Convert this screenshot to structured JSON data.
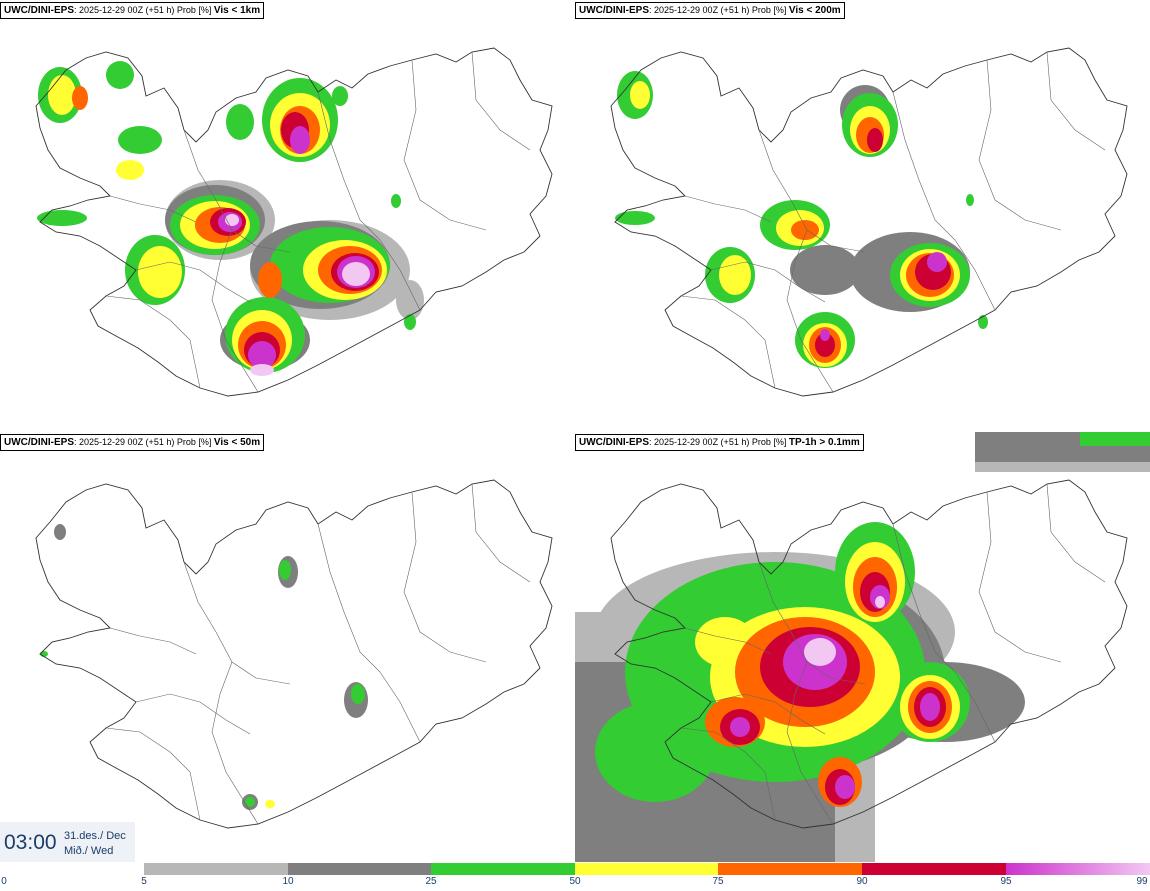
{
  "panels": [
    {
      "model": "UWC/DINI-EPS",
      "run": "2025-12-29 00Z (+51 h) Prob [%]",
      "variable": "Vis < 1km"
    },
    {
      "model": "UWC/DINI-EPS",
      "run": "2025-12-29 00Z (+51 h) Prob [%]",
      "variable": "Vis < 200m"
    },
    {
      "model": "UWC/DINI-EPS",
      "run": "2025-12-29 00Z (+51 h) Prob [%]",
      "variable": "Vis < 50m"
    },
    {
      "model": "UWC/DINI-EPS",
      "run": "2025-12-29 00Z (+51 h) Prob [%]",
      "variable": "TP-1h > 0.1mm"
    }
  ],
  "valid_time": {
    "time": "03:00",
    "date": "31.des./ Dec",
    "weekday": "Mið./ Wed"
  },
  "legend": {
    "ticks": [
      "0",
      "5",
      "10",
      "25",
      "50",
      "75",
      "90",
      "95",
      "99"
    ],
    "colors": [
      "#b7b7b7",
      "#7f7f7f",
      "#33cc33",
      "#ffff33",
      "#ff6600",
      "#cc0033",
      "#cc33cc"
    ],
    "top_color": "#f2c8f2"
  }
}
